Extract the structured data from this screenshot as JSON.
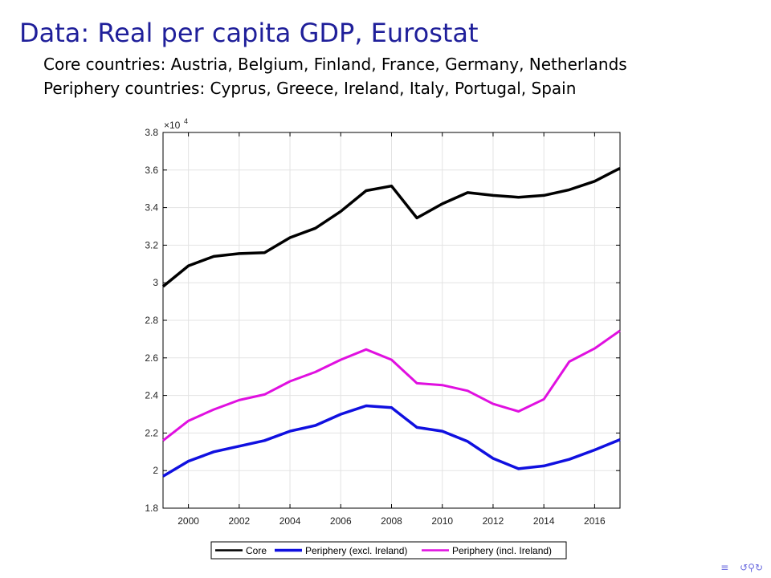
{
  "slide": {
    "title": "Data: Real per capita GDP, Eurostat",
    "subtitle_core": "Core countries: Austria, Belgium, Finland, France, Germany, Netherlands",
    "subtitle_periphery": "Periphery countries: Cyprus, Greece, Ireland, Italy, Portugal, Spain"
  },
  "nav": {
    "section_icon": "section-nav-icon",
    "search_icon": "search-nav-icon"
  },
  "chart_data": {
    "type": "line",
    "title": "",
    "xlabel": "",
    "ylabel": "",
    "y_multiplier_label": "×10",
    "y_multiplier_exp": "4",
    "xlim": [
      1999,
      2017
    ],
    "ylim": [
      1.8,
      3.8
    ],
    "x_ticks": [
      "2000",
      "2002",
      "2004",
      "2006",
      "2008",
      "2010",
      "2012",
      "2014",
      "2016"
    ],
    "y_ticks": [
      "1.8",
      "2",
      "2.2",
      "2.4",
      "2.6",
      "2.8",
      "3",
      "3.2",
      "3.4",
      "3.6",
      "3.8"
    ],
    "grid": true,
    "legend_position": "bottom-outside",
    "x": [
      1999,
      2000,
      2001,
      2002,
      2003,
      2004,
      2005,
      2006,
      2007,
      2008,
      2009,
      2010,
      2011,
      2012,
      2013,
      2014,
      2015,
      2016,
      2017
    ],
    "series": [
      {
        "name": "Core",
        "color": "#000000",
        "values": [
          2.98,
          3.09,
          3.14,
          3.155,
          3.16,
          3.24,
          3.29,
          3.38,
          3.49,
          3.515,
          3.345,
          3.42,
          3.48,
          3.465,
          3.455,
          3.465,
          3.495,
          3.54,
          3.61
        ]
      },
      {
        "name": "Periphery (excl. Ireland)",
        "color": "#1010e0",
        "values": [
          1.97,
          2.05,
          2.1,
          2.13,
          2.16,
          2.21,
          2.24,
          2.3,
          2.345,
          2.335,
          2.23,
          2.21,
          2.155,
          2.065,
          2.01,
          2.025,
          2.06,
          2.11,
          2.165
        ]
      },
      {
        "name": "Periphery (incl. Ireland)",
        "color": "#e010e0",
        "values": [
          2.16,
          2.265,
          2.325,
          2.375,
          2.405,
          2.475,
          2.525,
          2.59,
          2.645,
          2.59,
          2.465,
          2.455,
          2.425,
          2.355,
          2.315,
          2.38,
          2.58,
          2.65,
          2.745
        ]
      }
    ]
  }
}
